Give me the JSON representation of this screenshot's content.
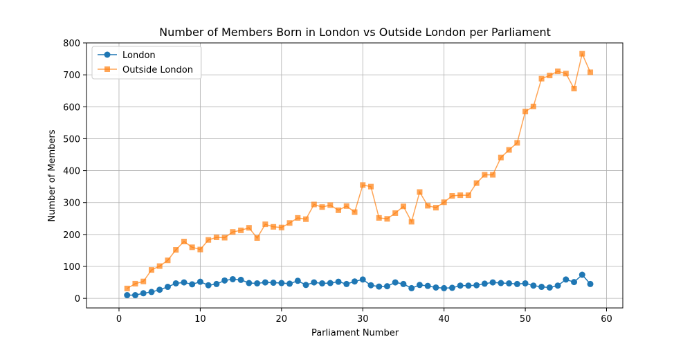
{
  "chart_data": {
    "type": "line",
    "title": "Number of Members Born in London vs Outside London per Parliament",
    "xlabel": "Parliament Number",
    "ylabel": "Number of Members",
    "xlim": [
      -4,
      62
    ],
    "ylim": [
      -30,
      800
    ],
    "xticks": [
      0,
      10,
      20,
      30,
      40,
      50,
      60
    ],
    "yticks": [
      0,
      100,
      200,
      300,
      400,
      500,
      600,
      700,
      800
    ],
    "grid": true,
    "legend_position": "top-left",
    "x": [
      1,
      2,
      3,
      4,
      5,
      6,
      7,
      8,
      9,
      10,
      11,
      12,
      13,
      14,
      15,
      16,
      17,
      18,
      19,
      20,
      21,
      22,
      23,
      24,
      25,
      26,
      27,
      28,
      29,
      30,
      31,
      32,
      33,
      34,
      35,
      36,
      37,
      38,
      39,
      40,
      41,
      42,
      43,
      44,
      45,
      46,
      47,
      48,
      49,
      50,
      51,
      52,
      53,
      54,
      55,
      56,
      57,
      58
    ],
    "series": [
      {
        "name": "London",
        "color": "#1f77b4",
        "marker": "circle",
        "values": [
          10,
          10,
          16,
          20,
          27,
          36,
          47,
          50,
          44,
          52,
          41,
          45,
          56,
          60,
          58,
          48,
          47,
          50,
          49,
          48,
          46,
          55,
          42,
          50,
          47,
          48,
          52,
          45,
          53,
          59,
          41,
          37,
          38,
          50,
          45,
          32,
          42,
          39,
          34,
          32,
          33,
          40,
          40,
          41,
          46,
          50,
          48,
          47,
          45,
          47,
          40,
          36,
          34,
          40,
          59,
          51,
          74,
          45
        ]
      },
      {
        "name": "Outside London",
        "color": "#ff7f0e",
        "marker": "square",
        "values": [
          31,
          46,
          53,
          89,
          101,
          119,
          152,
          178,
          160,
          153,
          183,
          191,
          190,
          208,
          213,
          221,
          189,
          232,
          224,
          222,
          236,
          252,
          248,
          294,
          286,
          292,
          276,
          289,
          270,
          355,
          350,
          252,
          249,
          267,
          288,
          240,
          333,
          290,
          284,
          301,
          321,
          323,
          323,
          361,
          387,
          387,
          441,
          465,
          487,
          585,
          601,
          688,
          698,
          711,
          704,
          657,
          766,
          708
        ]
      }
    ]
  }
}
